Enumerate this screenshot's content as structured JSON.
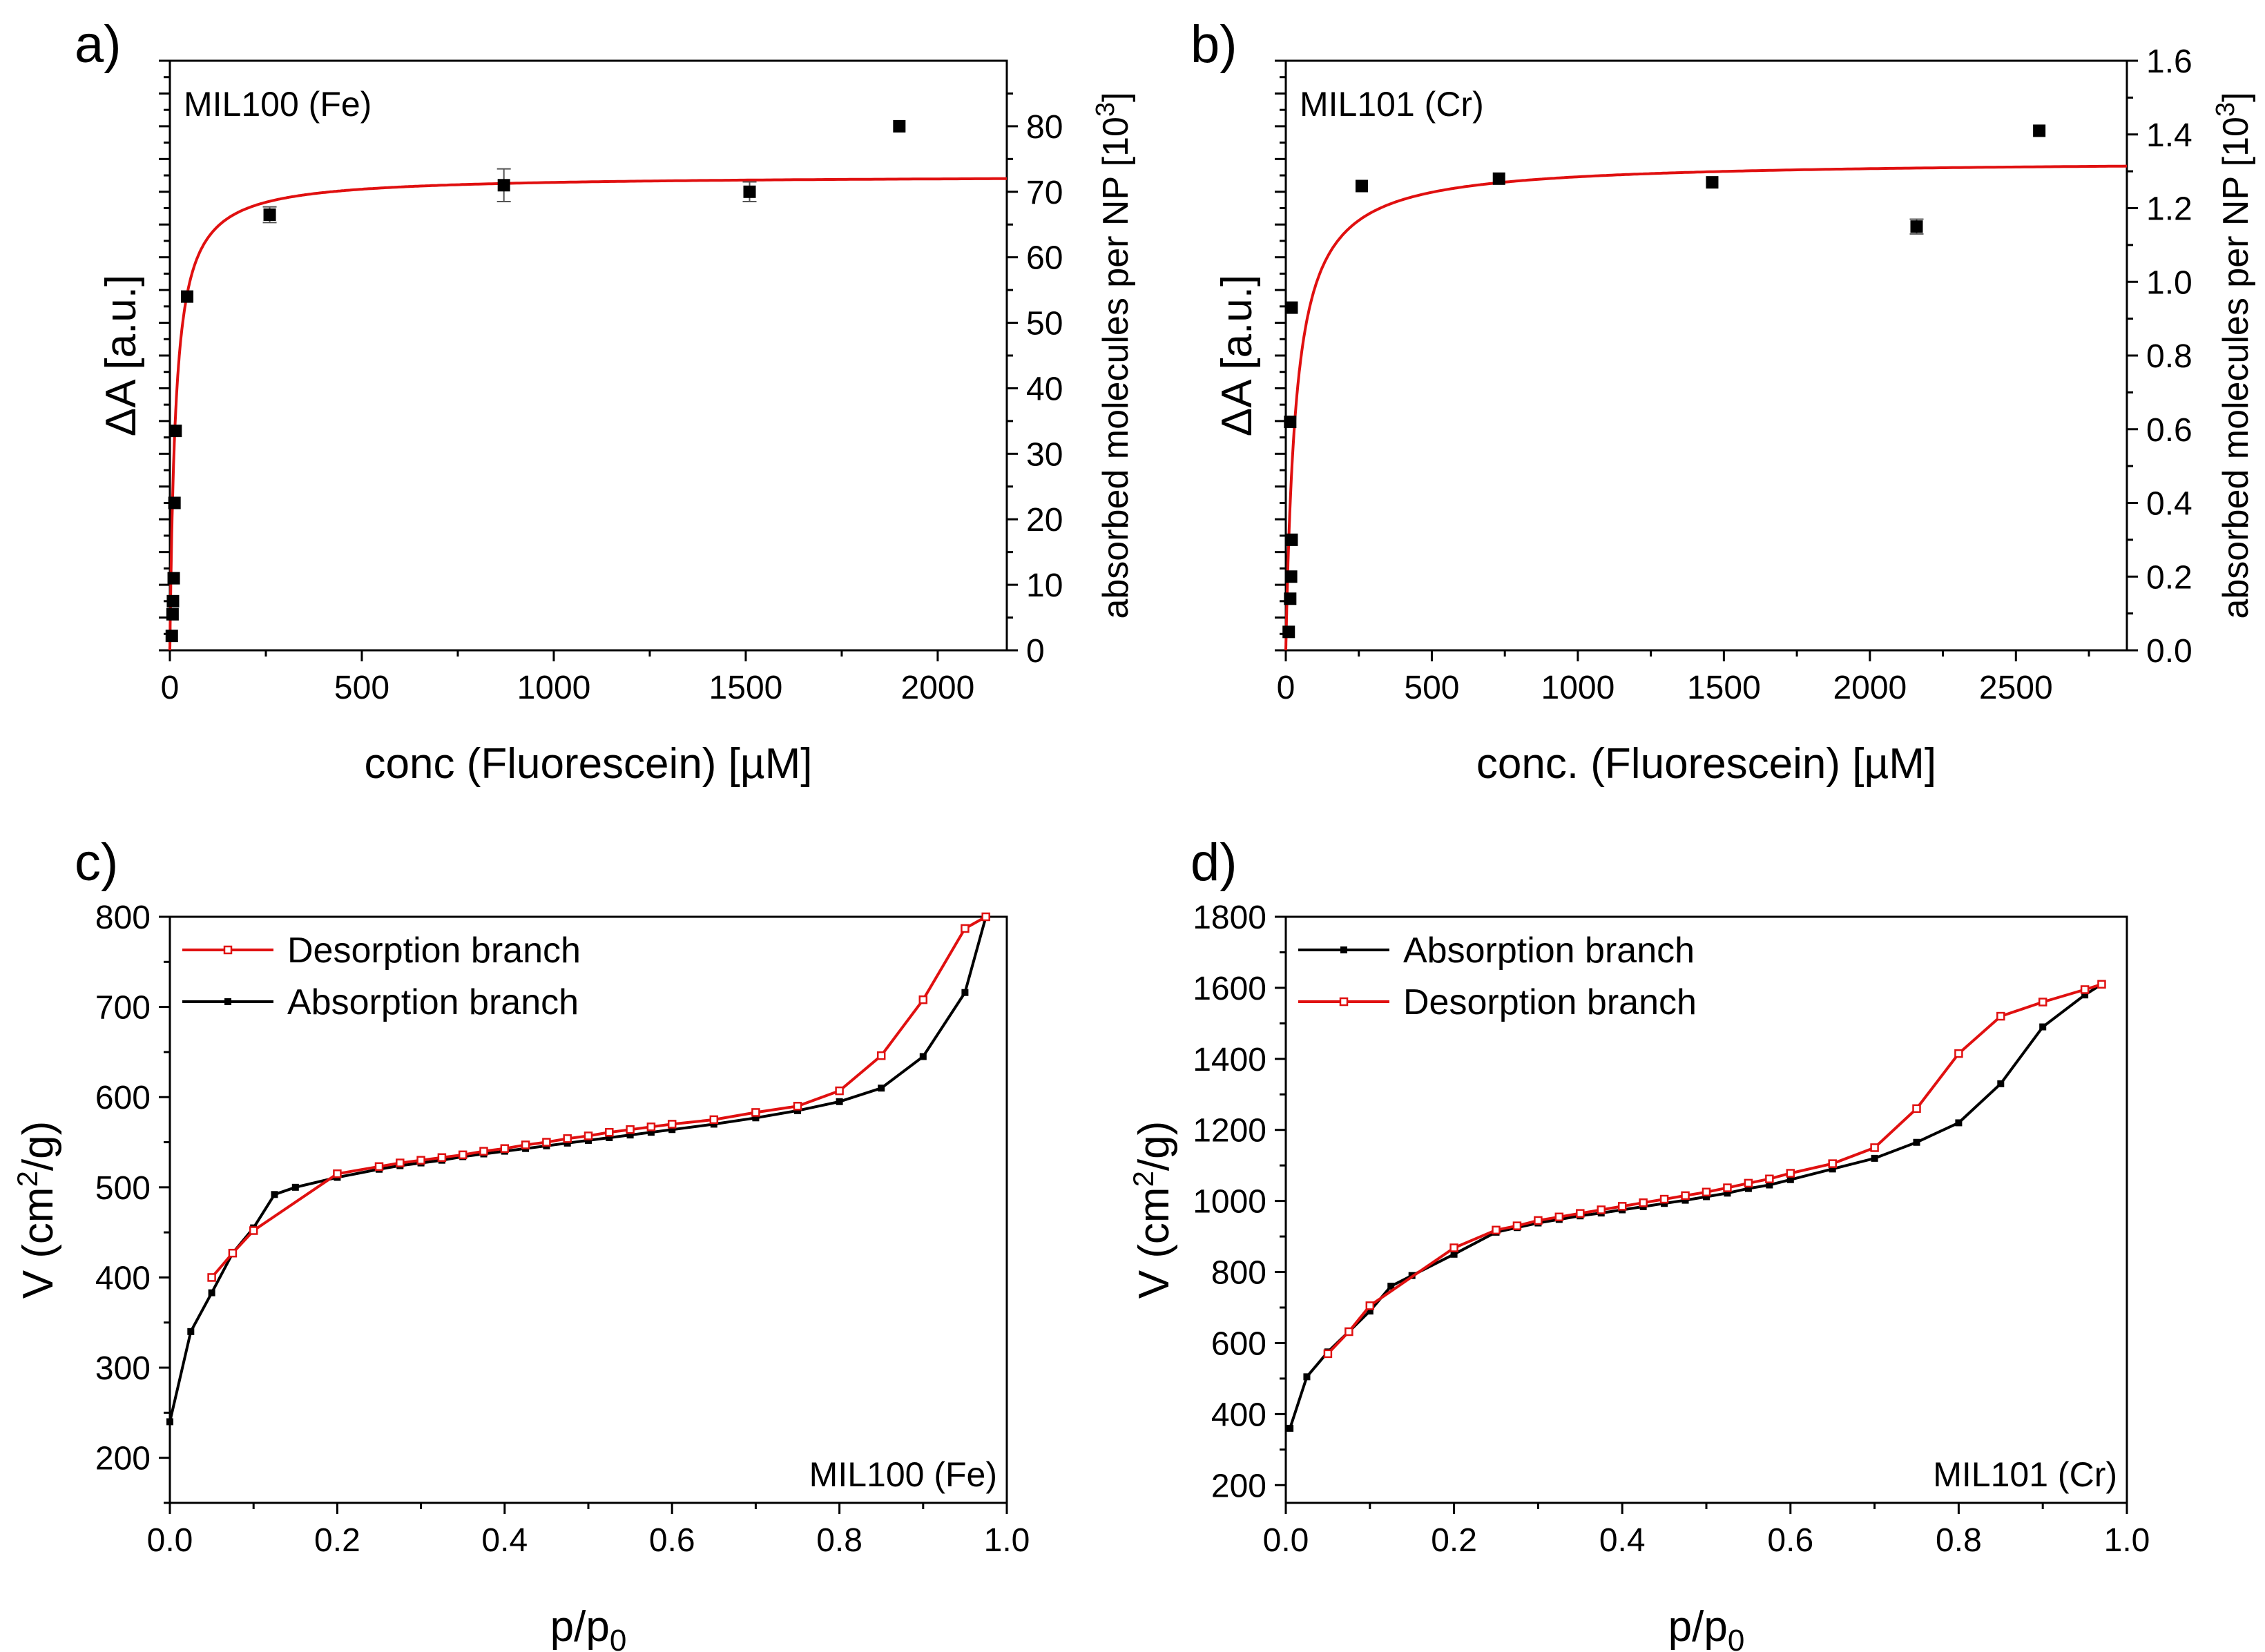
{
  "chart_data": [
    {
      "panel": "a)",
      "type": "scatter",
      "annotation": "MIL100 (Fe)",
      "xlabel": "conc (Fluorescein) [µM]",
      "ylabel": "ΔA [a.u.]",
      "y2label": "absorbed molecules per NP [10",
      "y2label_sup": "3",
      "y2label_end": "]",
      "xlim": [
        0,
        2180
      ],
      "ylim": [
        0,
        90
      ],
      "xticks": [
        "0",
        "500",
        "1000",
        "1500",
        "2000"
      ],
      "xtick_values": [
        0,
        500,
        1000,
        1500,
        2000
      ],
      "y2ticks": [
        "0",
        "10",
        "20",
        "30",
        "40",
        "50",
        "60",
        "70",
        "80"
      ],
      "y2tick_values": [
        0,
        10,
        20,
        30,
        40,
        50,
        60,
        70,
        80
      ],
      "points": {
        "name": "data",
        "x": [
          5,
          7,
          8,
          10,
          12,
          15,
          45,
          260,
          870,
          1510,
          1900
        ],
        "y": [
          2.2,
          5.5,
          7.5,
          11,
          22.5,
          33.5,
          54,
          66.5,
          71,
          70,
          80
        ],
        "err": [
          0,
          0,
          0,
          0,
          0,
          0,
          0,
          1.2,
          2.5,
          1.5,
          0
        ]
      },
      "fit": {
        "name": "fit",
        "model": "langmuir",
        "vmax": 72.5,
        "k": 15
      }
    },
    {
      "panel": "b)",
      "type": "scatter",
      "annotation": "MIL101 (Cr)",
      "xlabel": "conc. (Fluorescein) [µM]",
      "ylabel": "ΔA [a.u.]",
      "y2label": "absorbed molecules per NP [10",
      "y2label_sup": "3",
      "y2label_end": "]",
      "xlim": [
        0,
        2880
      ],
      "ylim": [
        0,
        1.6
      ],
      "xticks": [
        "0",
        "500",
        "1000",
        "1500",
        "2000",
        "2500"
      ],
      "xtick_values": [
        0,
        500,
        1000,
        1500,
        2000,
        2500
      ],
      "y2ticks": [
        "0.0",
        "0.2",
        "0.4",
        "0.6",
        "0.8",
        "1.0",
        "1.2",
        "1.4",
        "1.6"
      ],
      "y2tick_values": [
        0,
        0.2,
        0.4,
        0.6,
        0.8,
        1.0,
        1.2,
        1.4,
        1.6
      ],
      "points": {
        "name": "data",
        "x": [
          10,
          15,
          18,
          20,
          15,
          20,
          260,
          730,
          1460,
          2160,
          2580
        ],
        "y": [
          0.05,
          0.14,
          0.2,
          0.3,
          0.62,
          0.93,
          1.26,
          1.28,
          1.27,
          1.15,
          1.41
        ],
        "err": [
          0,
          0,
          0,
          0,
          0,
          0,
          0,
          0,
          0,
          0.02,
          0
        ]
      },
      "fit": {
        "name": "fit",
        "model": "langmuir",
        "vmax": 1.33,
        "k": 35
      }
    },
    {
      "panel": "c)",
      "type": "line",
      "annotation": "MIL100 (Fe)",
      "xlabel": "p/p",
      "xlabel_sub": "0",
      "ylabel": "V (cm",
      "ylabel_sup": "2",
      "ylabel_end": "/g)",
      "xlim": [
        0,
        1.0
      ],
      "ylim": [
        150,
        800
      ],
      "xticks": [
        "0.0",
        "0.2",
        "0.4",
        "0.6",
        "0.8",
        "1.0"
      ],
      "xtick_values": [
        0,
        0.2,
        0.4,
        0.6,
        0.8,
        1.0
      ],
      "yticks": [
        "200",
        "300",
        "400",
        "500",
        "600",
        "700",
        "800"
      ],
      "ytick_values": [
        200,
        300,
        400,
        500,
        600,
        700,
        800
      ],
      "legend": [
        "Desorption branch",
        "Absorption branch"
      ],
      "series": [
        {
          "name": "Absorption branch",
          "color": "#000000",
          "x": [
            0.0,
            0.025,
            0.05,
            0.075,
            0.1,
            0.125,
            0.15,
            0.2,
            0.25,
            0.275,
            0.3,
            0.325,
            0.35,
            0.375,
            0.4,
            0.425,
            0.45,
            0.475,
            0.5,
            0.525,
            0.55,
            0.575,
            0.6,
            0.65,
            0.7,
            0.75,
            0.8,
            0.85,
            0.9,
            0.95,
            0.975
          ],
          "y": [
            240,
            340,
            383,
            427,
            455,
            492,
            500,
            511,
            520,
            524,
            527,
            530,
            534,
            537,
            540,
            543,
            546,
            549,
            552,
            555,
            558,
            561,
            564,
            570,
            577,
            585,
            595,
            610,
            645,
            716,
            800
          ]
        },
        {
          "name": "Desorption branch",
          "color": "#e01010",
          "x": [
            0.05,
            0.075,
            0.1,
            0.2,
            0.25,
            0.275,
            0.3,
            0.325,
            0.35,
            0.375,
            0.4,
            0.425,
            0.45,
            0.475,
            0.5,
            0.525,
            0.55,
            0.575,
            0.6,
            0.65,
            0.7,
            0.75,
            0.8,
            0.85,
            0.9,
            0.95,
            0.975
          ],
          "y": [
            400,
            427,
            452,
            515,
            523,
            527,
            530,
            533,
            536,
            540,
            543,
            547,
            550,
            554,
            557,
            561,
            564,
            567,
            570,
            575,
            583,
            590,
            607,
            646,
            708,
            787,
            800
          ]
        }
      ]
    },
    {
      "panel": "d)",
      "type": "line",
      "annotation": "MIL101 (Cr)",
      "xlabel": "p/p",
      "xlabel_sub": "0",
      "ylabel": "V (cm",
      "ylabel_sup": "2",
      "ylabel_end": "/g)",
      "xlim": [
        0,
        1.0
      ],
      "ylim": [
        150,
        1800
      ],
      "xticks": [
        "0.0",
        "0.2",
        "0.4",
        "0.6",
        "0.8",
        "1.0"
      ],
      "xtick_values": [
        0,
        0.2,
        0.4,
        0.6,
        0.8,
        1.0
      ],
      "yticks": [
        "200",
        "400",
        "600",
        "800",
        "1000",
        "1200",
        "1400",
        "1600",
        "1800"
      ],
      "ytick_values": [
        200,
        400,
        600,
        800,
        1000,
        1200,
        1400,
        1600,
        1800
      ],
      "legend": [
        "Absorption branch",
        "Desorption branch"
      ],
      "series": [
        {
          "name": "Absorption branch",
          "color": "#000000",
          "x": [
            0.005,
            0.025,
            0.05,
            0.075,
            0.1,
            0.125,
            0.15,
            0.2,
            0.25,
            0.275,
            0.3,
            0.325,
            0.35,
            0.375,
            0.4,
            0.425,
            0.45,
            0.475,
            0.5,
            0.525,
            0.55,
            0.575,
            0.6,
            0.65,
            0.7,
            0.75,
            0.8,
            0.85,
            0.9,
            0.95,
            0.97
          ],
          "y": [
            360,
            505,
            575,
            632,
            690,
            760,
            790,
            850,
            912,
            925,
            938,
            948,
            958,
            966,
            975,
            984,
            993,
            1002,
            1012,
            1022,
            1035,
            1045,
            1060,
            1090,
            1120,
            1165,
            1220,
            1330,
            1490,
            1580,
            1610
          ]
        },
        {
          "name": "Desorption branch",
          "color": "#e01010",
          "x": [
            0.05,
            0.075,
            0.1,
            0.2,
            0.25,
            0.275,
            0.3,
            0.325,
            0.35,
            0.375,
            0.4,
            0.425,
            0.45,
            0.475,
            0.5,
            0.525,
            0.55,
            0.575,
            0.6,
            0.65,
            0.7,
            0.75,
            0.8,
            0.85,
            0.9,
            0.95,
            0.97
          ],
          "y": [
            570,
            632,
            705,
            868,
            918,
            930,
            945,
            955,
            965,
            975,
            985,
            995,
            1005,
            1015,
            1025,
            1037,
            1050,
            1062,
            1078,
            1105,
            1150,
            1260,
            1415,
            1520,
            1560,
            1595,
            1610
          ]
        }
      ]
    }
  ]
}
